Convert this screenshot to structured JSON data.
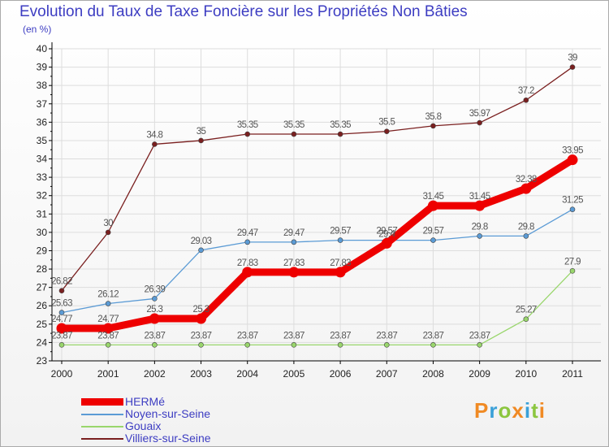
{
  "title": "Evolution du Taux de Taxe Foncière sur les Propriétés Non Bâties",
  "unit_label": "(en %)",
  "brand": {
    "letters": [
      "P",
      "r",
      "o",
      "x",
      "i",
      "t",
      "i"
    ],
    "colors": [
      "#f08a24",
      "#3aa0d8",
      "#8cc63f",
      "#f08a24",
      "#3aa0d8",
      "#8cc63f",
      "#f08a24"
    ]
  },
  "chart_data": {
    "type": "line",
    "categories": [
      "2000",
      "2001",
      "2002",
      "2003",
      "2004",
      "2005",
      "2006",
      "2007",
      "2008",
      "2009",
      "2010",
      "2011"
    ],
    "ylim": [
      23,
      40
    ],
    "yticks": [
      "23",
      "24",
      "25",
      "26",
      "27",
      "28",
      "29",
      "30",
      "31",
      "32",
      "33",
      "34",
      "35",
      "36",
      "37",
      "38",
      "39",
      "40"
    ],
    "series": [
      {
        "name": "Villiers-sur-Seine",
        "color": "#7a1f1f",
        "style": "thin",
        "values": [
          26.82,
          30,
          34.8,
          35,
          35.35,
          35.35,
          35.35,
          35.5,
          35.8,
          35.97,
          37.2,
          39
        ],
        "labels": [
          "26.82",
          "30",
          "34.8",
          "35",
          "35.35",
          "35.35",
          "35.35",
          "35.5",
          "35.8",
          "35.97",
          "37.2",
          "39"
        ]
      },
      {
        "name": "Noyen-sur-Seine",
        "color": "#5b9bd5",
        "style": "thin",
        "values": [
          25.63,
          26.12,
          26.39,
          29.03,
          29.47,
          29.47,
          29.57,
          29.57,
          29.57,
          29.8,
          29.8,
          31.25
        ],
        "labels": [
          "25.63",
          "26.12",
          "26.39",
          "29.03",
          "29.47",
          "29.47",
          "29.57",
          "29.57",
          "29.57",
          "29.8",
          "29.8",
          "31.25"
        ]
      },
      {
        "name": "Gouaix",
        "color": "#99d66c",
        "style": "thin",
        "values": [
          23.87,
          23.87,
          23.87,
          23.87,
          23.87,
          23.87,
          23.87,
          23.87,
          23.87,
          23.87,
          25.27,
          27.9
        ],
        "labels": [
          "23.87",
          "23.87",
          "23.87",
          "23.87",
          "23.87",
          "23.87",
          "23.87",
          "23.87",
          "23.87",
          "23.87",
          "25.27",
          "27.9"
        ]
      },
      {
        "name": "HERMé",
        "color": "#ee0000",
        "style": "thick",
        "values": [
          24.77,
          24.77,
          25.3,
          25.3,
          27.83,
          27.83,
          27.83,
          29.4,
          31.45,
          31.45,
          32.38,
          33.95
        ],
        "labels": [
          "24.77",
          "24.77",
          "25.3",
          "25.3",
          "27.83",
          "27.83",
          "27.83",
          "29.4",
          "31.45",
          "31.45",
          "32.38",
          "33.95"
        ]
      }
    ],
    "legend": [
      {
        "name": "HERMé",
        "color": "#ee0000",
        "style": "thick"
      },
      {
        "name": "Noyen-sur-Seine",
        "color": "#5b9bd5",
        "style": "thin"
      },
      {
        "name": "Gouaix",
        "color": "#99d66c",
        "style": "thin"
      },
      {
        "name": "Villiers-sur-Seine",
        "color": "#7a1f1f",
        "style": "thin"
      }
    ]
  }
}
